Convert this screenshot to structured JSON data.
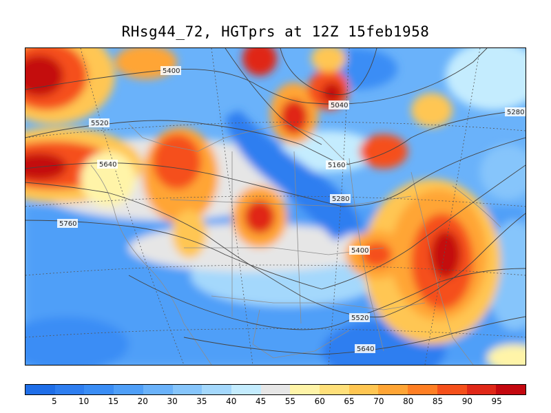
{
  "title": "RHsg44_72, HGTprs at 12Z  15feb1958",
  "colorbar": {
    "colors": [
      "#1f6ee8",
      "#2e7ef0",
      "#3a8df5",
      "#4f9ff8",
      "#6ab2fa",
      "#86c5fb",
      "#a4d8fc",
      "#c4ecfe",
      "#e6e6e6",
      "#fff4a8",
      "#ffe07a",
      "#ffc652",
      "#ffa535",
      "#ff7f24",
      "#f5501b",
      "#e02818",
      "#c4080f"
    ],
    "labels": [
      "5",
      "10",
      "15",
      "20",
      "30",
      "35",
      "40",
      "45",
      "55",
      "60",
      "65",
      "70",
      "80",
      "85",
      "90",
      "95"
    ]
  },
  "contour_labels": [
    "5400",
    "5040",
    "5280",
    "5520",
    "5160",
    "5640",
    "5280",
    "5760",
    "5400",
    "5520",
    "5640"
  ]
}
